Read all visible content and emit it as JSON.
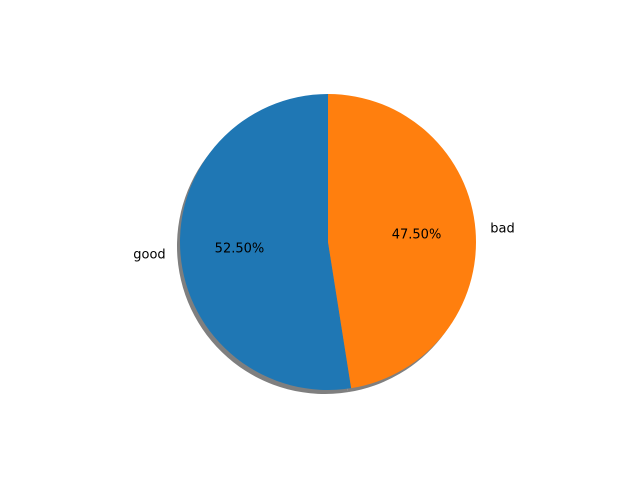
{
  "chart_data": {
    "type": "pie",
    "title": "",
    "labels": [
      "good",
      "bad"
    ],
    "values": [
      52.5,
      47.5
    ],
    "percent_labels": [
      "52.50%",
      "47.50%"
    ],
    "colors": [
      "#1f77b4",
      "#ff7f0e"
    ],
    "start_angle": 90,
    "direction": "counterclockwise",
    "shadow": true,
    "shadow_color": "#7f7f7f"
  }
}
